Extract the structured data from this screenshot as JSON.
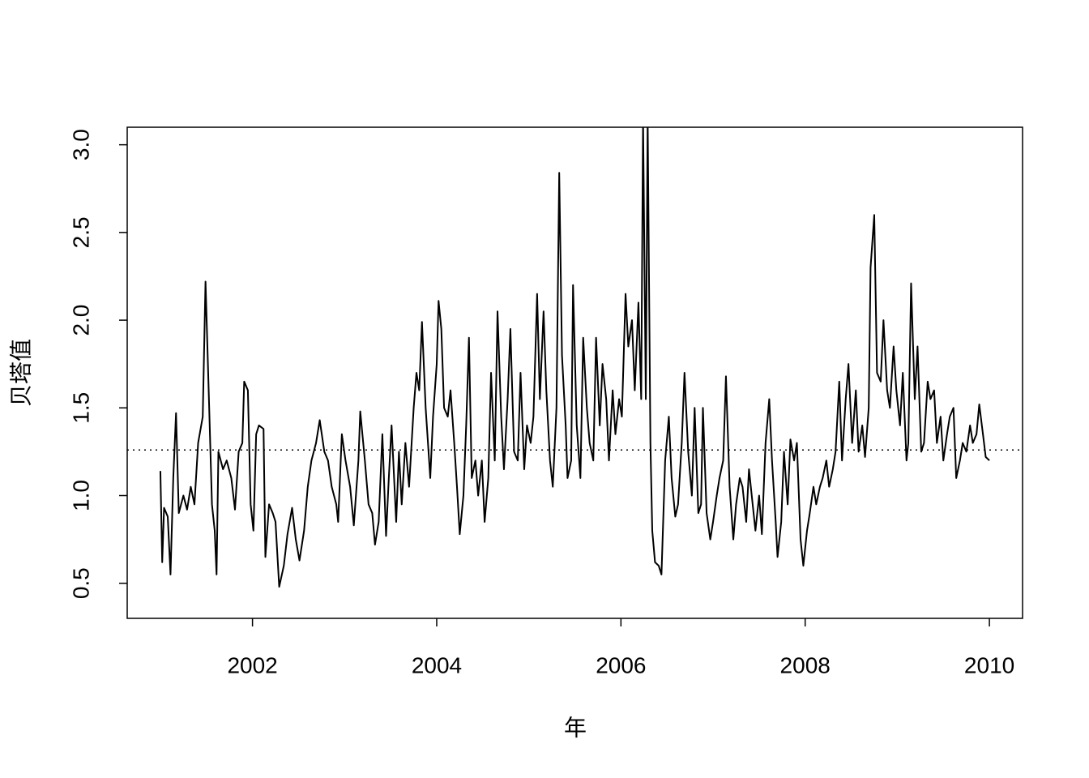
{
  "chart_data": {
    "type": "line",
    "xlabel": "年",
    "ylabel": "贝塔值",
    "color": "#000000",
    "xlim": [
      2000.64,
      2010.36
    ],
    "xticks": [
      2002,
      2004,
      2006,
      2008,
      2010
    ],
    "ylim": [
      0.3,
      3.1
    ],
    "yticks": [
      {
        "value": 0.5,
        "label": "0.5"
      },
      {
        "value": 1.0,
        "label": "1.0"
      },
      {
        "value": 1.5,
        "label": "1.5"
      },
      {
        "value": 2.0,
        "label": "2.0"
      },
      {
        "value": 2.5,
        "label": "2.5"
      },
      {
        "value": 3.0,
        "label": "3.0"
      }
    ],
    "hline": 1.26,
    "x": [
      2001.0,
      2001.02,
      2001.04,
      2001.08,
      2001.11,
      2001.14,
      2001.17,
      2001.2,
      2001.25,
      2001.29,
      2001.33,
      2001.37,
      2001.41,
      2001.46,
      2001.49,
      2001.53,
      2001.56,
      2001.59,
      2001.61,
      2001.63,
      2001.68,
      2001.72,
      2001.77,
      2001.81,
      2001.85,
      2001.89,
      2001.91,
      2001.95,
      2001.98,
      2002.01,
      2002.04,
      2002.07,
      2002.12,
      2002.14,
      2002.18,
      2002.22,
      2002.25,
      2002.29,
      2002.34,
      2002.38,
      2002.43,
      2002.47,
      2002.51,
      2002.56,
      2002.6,
      2002.64,
      2002.69,
      2002.73,
      2002.78,
      2002.82,
      2002.86,
      2002.91,
      2002.93,
      2002.97,
      2003.01,
      2003.06,
      2003.1,
      2003.15,
      2003.17,
      2003.22,
      2003.26,
      2003.3,
      2003.33,
      2003.37,
      2003.41,
      2003.45,
      2003.48,
      2003.51,
      2003.56,
      2003.59,
      2003.62,
      2003.66,
      2003.7,
      2003.75,
      2003.78,
      2003.81,
      2003.84,
      2003.88,
      2003.93,
      2003.96,
      2004.0,
      2004.02,
      2004.05,
      2004.08,
      2004.12,
      2004.15,
      2004.19,
      2004.22,
      2004.25,
      2004.29,
      2004.32,
      2004.35,
      2004.38,
      2004.42,
      2004.45,
      2004.49,
      2004.52,
      2004.56,
      2004.59,
      2004.63,
      2004.66,
      2004.7,
      2004.73,
      2004.77,
      2004.8,
      2004.84,
      2004.88,
      2004.91,
      2004.95,
      2004.98,
      2005.02,
      2005.05,
      2005.09,
      2005.12,
      2005.16,
      2005.19,
      2005.23,
      2005.26,
      2005.3,
      2005.33,
      2005.36,
      2005.4,
      2005.42,
      2005.46,
      2005.48,
      2005.52,
      2005.56,
      2005.59,
      2005.63,
      2005.66,
      2005.7,
      2005.73,
      2005.77,
      2005.8,
      2005.84,
      2005.87,
      2005.91,
      2005.94,
      2005.98,
      2006.01,
      2006.05,
      2006.08,
      2006.12,
      2006.15,
      2006.19,
      2006.22,
      2006.24,
      2006.27,
      2006.29,
      2006.32,
      2006.34,
      2006.37,
      2006.41,
      2006.44,
      2006.48,
      2006.52,
      2006.55,
      2006.59,
      2006.62,
      2006.66,
      2006.69,
      2006.73,
      2006.77,
      2006.8,
      2006.84,
      2006.87,
      2006.89,
      2006.93,
      2006.97,
      2007.0,
      2007.04,
      2007.07,
      2007.11,
      2007.14,
      2007.18,
      2007.22,
      2007.25,
      2007.29,
      2007.32,
      2007.36,
      2007.39,
      2007.43,
      2007.46,
      2007.5,
      2007.53,
      2007.57,
      2007.61,
      2007.64,
      2007.68,
      2007.7,
      2007.74,
      2007.77,
      2007.81,
      2007.84,
      2007.88,
      2007.91,
      2007.95,
      2007.98,
      2008.02,
      2008.05,
      2008.09,
      2008.12,
      2008.16,
      2008.19,
      2008.23,
      2008.26,
      2008.3,
      2008.33,
      2008.37,
      2008.4,
      2008.44,
      2008.47,
      2008.51,
      2008.55,
      2008.58,
      2008.62,
      2008.65,
      2008.69,
      2008.71,
      2008.75,
      2008.78,
      2008.82,
      2008.85,
      2008.89,
      2008.92,
      2008.96,
      2008.99,
      2009.03,
      2009.06,
      2009.1,
      2009.12,
      2009.15,
      2009.19,
      2009.22,
      2009.26,
      2009.29,
      2009.33,
      2009.36,
      2009.4,
      2009.43,
      2009.47,
      2009.5,
      2009.54,
      2009.57,
      2009.61,
      2009.64,
      2009.68,
      2009.71,
      2009.75,
      2009.79,
      2009.82,
      2009.86,
      2009.89,
      2009.93,
      2009.96,
      2010.0
    ],
    "values": [
      1.14,
      0.62,
      0.93,
      0.88,
      0.55,
      1.1,
      1.47,
      0.9,
      1.0,
      0.92,
      1.05,
      0.95,
      1.3,
      1.45,
      2.22,
      1.5,
      0.95,
      0.8,
      0.55,
      1.25,
      1.15,
      1.2,
      1.1,
      0.92,
      1.25,
      1.3,
      1.65,
      1.6,
      0.95,
      0.8,
      1.35,
      1.4,
      1.38,
      0.65,
      0.95,
      0.9,
      0.85,
      0.48,
      0.6,
      0.78,
      0.93,
      0.75,
      0.63,
      0.8,
      1.05,
      1.2,
      1.3,
      1.43,
      1.25,
      1.2,
      1.05,
      0.95,
      0.85,
      1.35,
      1.2,
      1.05,
      0.83,
      1.2,
      1.48,
      1.2,
      0.95,
      0.9,
      0.72,
      0.85,
      1.35,
      0.77,
      1.1,
      1.4,
      0.85,
      1.25,
      0.95,
      1.3,
      1.05,
      1.5,
      1.7,
      1.6,
      1.99,
      1.5,
      1.1,
      1.45,
      1.75,
      2.11,
      1.95,
      1.5,
      1.45,
      1.6,
      1.3,
      1.05,
      0.78,
      1.0,
      1.4,
      1.9,
      1.1,
      1.2,
      1.0,
      1.2,
      0.85,
      1.1,
      1.7,
      1.2,
      2.05,
      1.45,
      1.15,
      1.55,
      1.95,
      1.25,
      1.2,
      1.7,
      1.15,
      1.4,
      1.3,
      1.45,
      2.15,
      1.55,
      2.05,
      1.6,
      1.2,
      1.05,
      1.5,
      2.84,
      1.8,
      1.4,
      1.1,
      1.2,
      2.2,
      1.4,
      1.1,
      1.9,
      1.5,
      1.3,
      1.2,
      1.9,
      1.4,
      1.75,
      1.55,
      1.2,
      1.6,
      1.35,
      1.55,
      1.45,
      2.15,
      1.85,
      2.0,
      1.6,
      2.1,
      1.55,
      3.15,
      1.55,
      3.15,
      1.3,
      0.8,
      0.62,
      0.6,
      0.55,
      1.2,
      1.45,
      1.1,
      0.88,
      0.95,
      1.3,
      1.7,
      1.25,
      1.0,
      1.5,
      0.9,
      0.95,
      1.5,
      0.9,
      0.75,
      0.85,
      1.0,
      1.1,
      1.2,
      1.68,
      1.05,
      0.75,
      0.95,
      1.1,
      1.05,
      0.85,
      1.15,
      0.95,
      0.8,
      1.0,
      0.78,
      1.3,
      1.55,
      1.2,
      0.85,
      0.65,
      0.85,
      1.25,
      0.95,
      1.32,
      1.2,
      1.3,
      0.75,
      0.6,
      0.8,
      0.9,
      1.05,
      0.95,
      1.05,
      1.1,
      1.2,
      1.05,
      1.15,
      1.25,
      1.65,
      1.2,
      1.55,
      1.75,
      1.3,
      1.6,
      1.25,
      1.4,
      1.22,
      1.5,
      2.3,
      2.6,
      1.7,
      1.65,
      2.0,
      1.6,
      1.5,
      1.85,
      1.6,
      1.4,
      1.7,
      1.2,
      1.3,
      2.21,
      1.55,
      1.85,
      1.25,
      1.3,
      1.65,
      1.55,
      1.6,
      1.3,
      1.45,
      1.2,
      1.35,
      1.45,
      1.5,
      1.1,
      1.2,
      1.3,
      1.25,
      1.4,
      1.3,
      1.35,
      1.52,
      1.35,
      1.22,
      1.2
    ]
  }
}
